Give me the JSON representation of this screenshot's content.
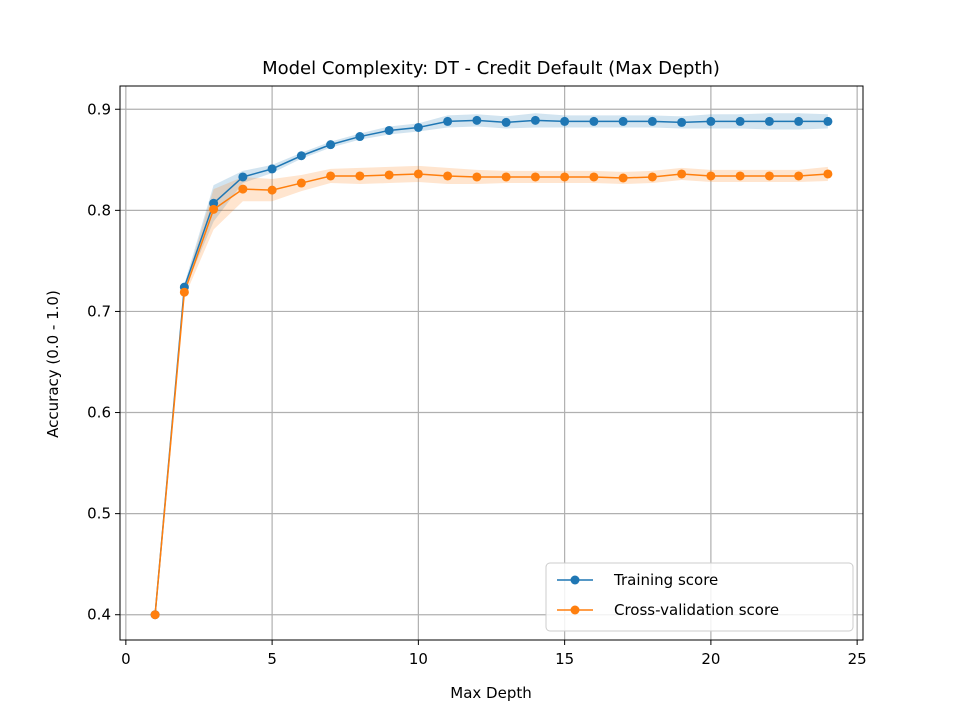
{
  "chart_data": {
    "type": "line",
    "title": "Model Complexity: DT - Credit Default (Max Depth)",
    "xlabel": "Max Depth",
    "ylabel": "Accuracy (0.0 - 1.0)",
    "xlim": [
      -0.2,
      25.2
    ],
    "ylim": [
      0.375,
      0.923
    ],
    "xticks": [
      0,
      5,
      10,
      15,
      20,
      25
    ],
    "yticks": [
      0.4,
      0.5,
      0.6,
      0.7,
      0.8,
      0.9
    ],
    "grid": true,
    "legend_position": "lower-right",
    "x": [
      1,
      2,
      3,
      4,
      5,
      6,
      7,
      8,
      9,
      10,
      11,
      12,
      13,
      14,
      15,
      16,
      17,
      18,
      19,
      20,
      21,
      22,
      23,
      24
    ],
    "series": [
      {
        "name": "Training score",
        "color": "#1f77b4",
        "values": [
          0.4,
          0.724,
          0.807,
          0.833,
          0.841,
          0.854,
          0.865,
          0.873,
          0.879,
          0.882,
          0.888,
          0.889,
          0.887,
          0.889,
          0.888,
          0.888,
          0.888,
          0.888,
          0.887,
          0.888,
          0.888,
          0.888,
          0.888,
          0.888
        ],
        "band": [
          0.0,
          0.003,
          0.018,
          0.006,
          0.004,
          0.003,
          0.003,
          0.003,
          0.004,
          0.004,
          0.006,
          0.006,
          0.006,
          0.007,
          0.006,
          0.006,
          0.006,
          0.006,
          0.006,
          0.007,
          0.007,
          0.008,
          0.008,
          0.007
        ]
      },
      {
        "name": "Cross-validation score",
        "color": "#ff7f0e",
        "values": [
          0.4,
          0.719,
          0.801,
          0.821,
          0.82,
          0.827,
          0.834,
          0.834,
          0.835,
          0.836,
          0.834,
          0.833,
          0.833,
          0.833,
          0.833,
          0.833,
          0.832,
          0.833,
          0.836,
          0.834,
          0.834,
          0.834,
          0.834,
          0.836
        ],
        "band": [
          0.0,
          0.005,
          0.02,
          0.012,
          0.011,
          0.008,
          0.007,
          0.008,
          0.008,
          0.008,
          0.008,
          0.007,
          0.006,
          0.006,
          0.006,
          0.006,
          0.006,
          0.006,
          0.006,
          0.006,
          0.006,
          0.006,
          0.006,
          0.007
        ]
      }
    ]
  }
}
